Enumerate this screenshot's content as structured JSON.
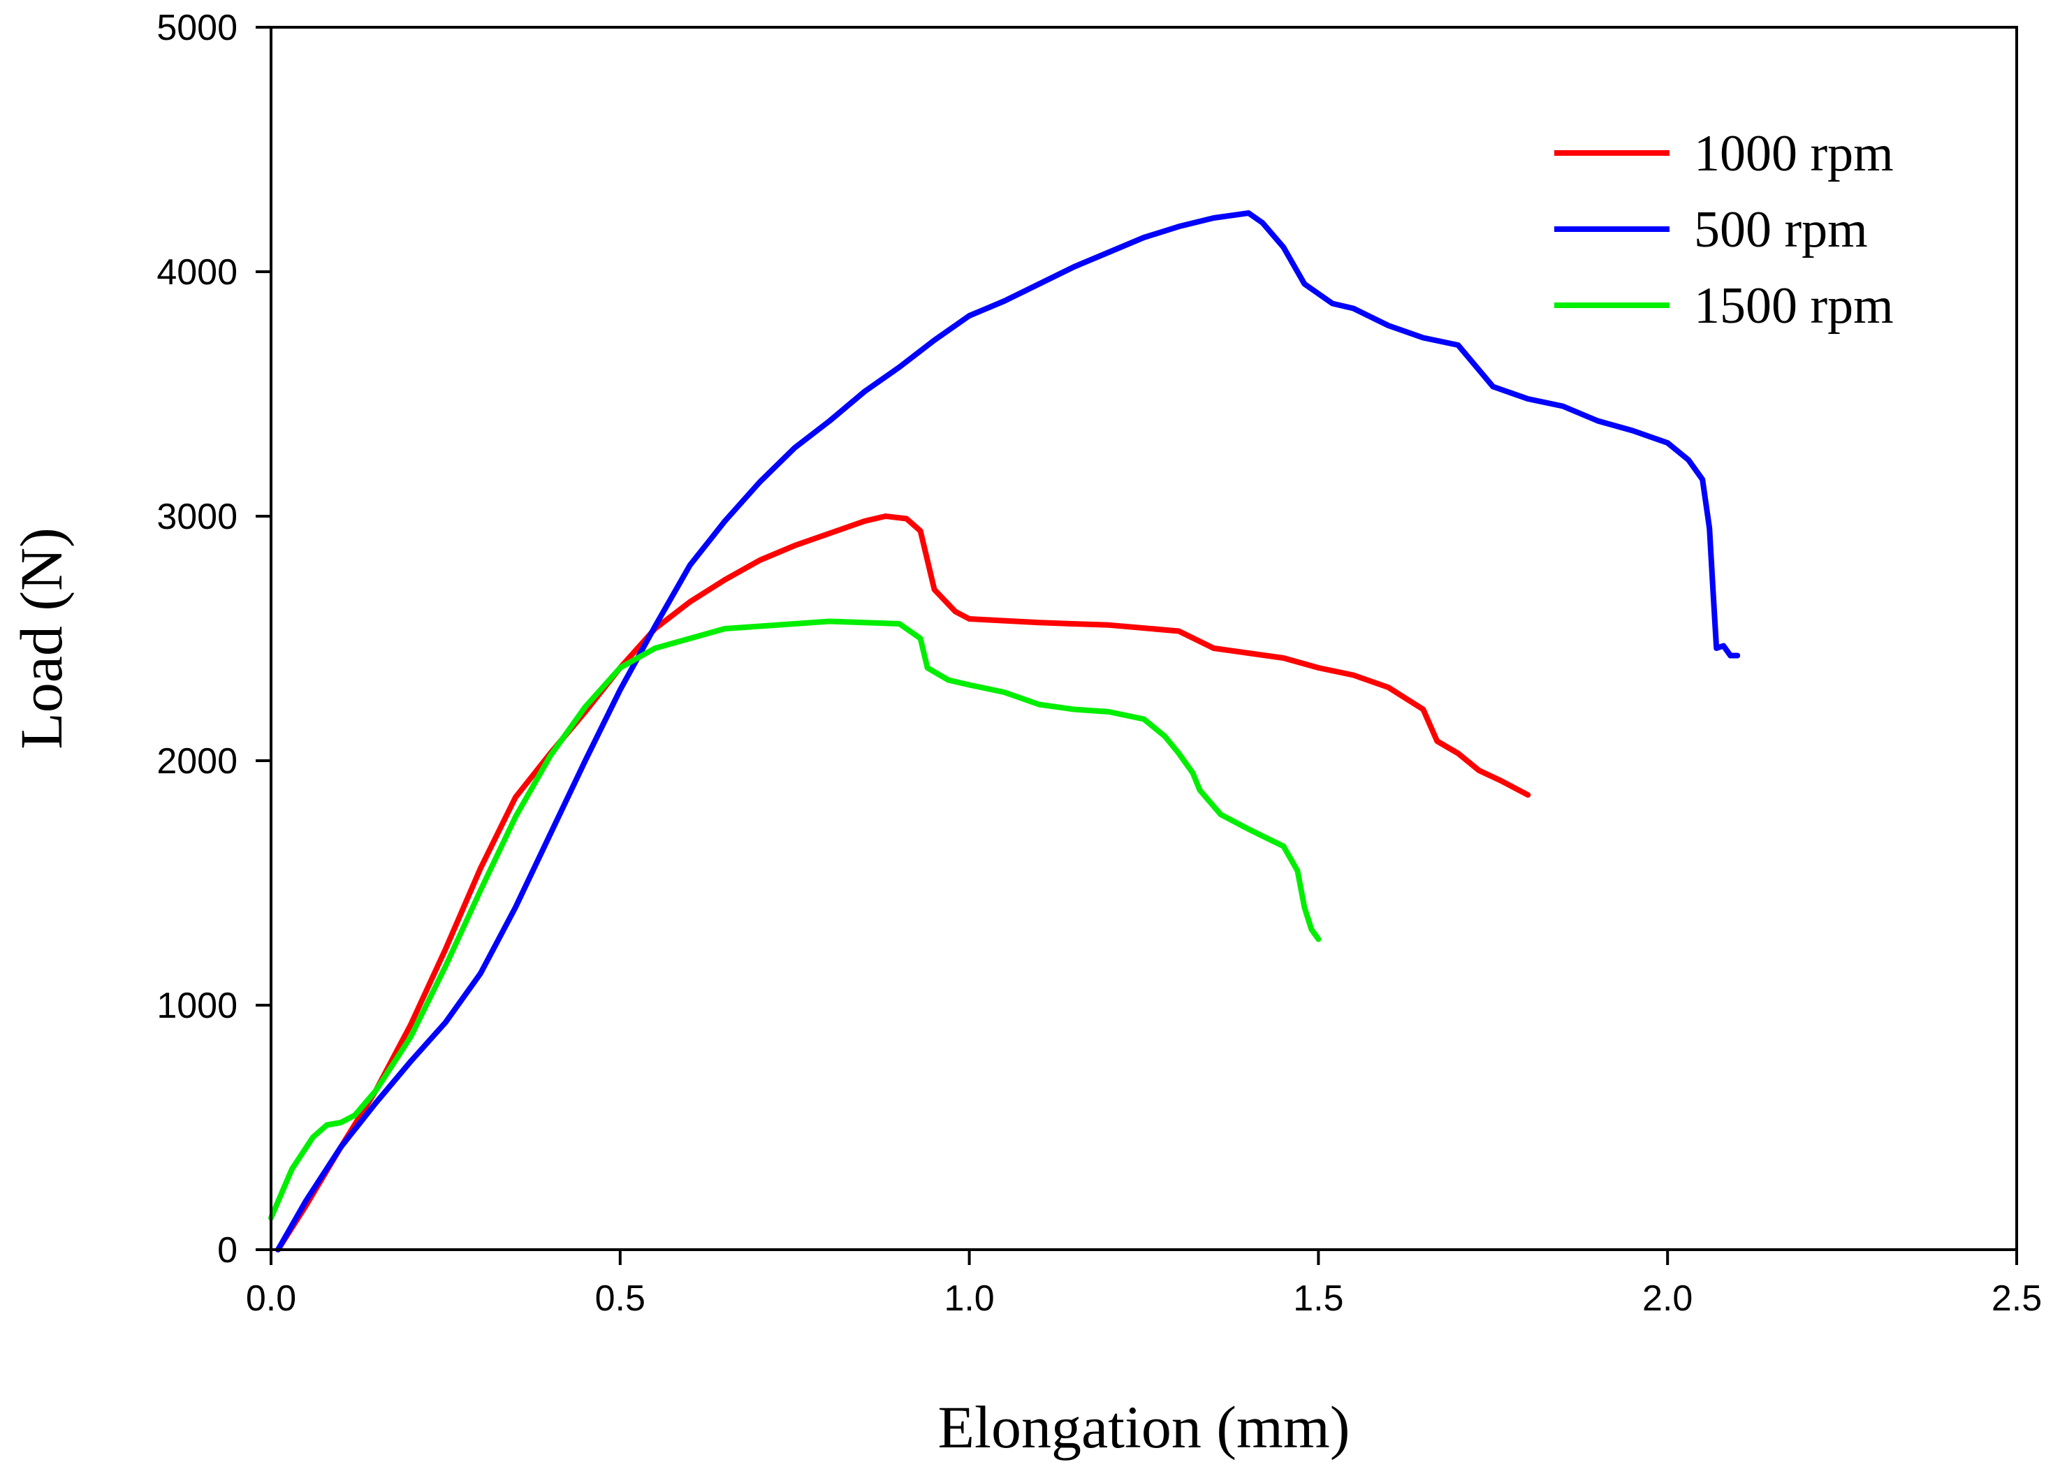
{
  "chart_data": {
    "type": "line",
    "title": "",
    "xlabel": "Elongation (mm)",
    "ylabel": "Load (N)",
    "xlim": [
      0.0,
      2.5
    ],
    "ylim": [
      0,
      5000
    ],
    "xticks": [
      0.0,
      0.5,
      1.0,
      1.5,
      2.0,
      2.5
    ],
    "xtick_labels": [
      "0.0",
      "0.5",
      "1.0",
      "1.5",
      "2.0",
      "2.5"
    ],
    "yticks": [
      0,
      1000,
      2000,
      3000,
      4000,
      5000
    ],
    "ytick_labels": [
      "0",
      "1000",
      "2000",
      "3000",
      "4000",
      "5000"
    ],
    "grid": false,
    "legend_position": "top-right",
    "series": [
      {
        "name": "1000 rpm",
        "color": "#ff0000",
        "points": [
          [
            0.01,
            0
          ],
          [
            0.05,
            180
          ],
          [
            0.1,
            420
          ],
          [
            0.15,
            650
          ],
          [
            0.2,
            920
          ],
          [
            0.25,
            1230
          ],
          [
            0.3,
            1560
          ],
          [
            0.35,
            1850
          ],
          [
            0.4,
            2030
          ],
          [
            0.45,
            2200
          ],
          [
            0.5,
            2380
          ],
          [
            0.55,
            2540
          ],
          [
            0.6,
            2650
          ],
          [
            0.65,
            2740
          ],
          [
            0.7,
            2820
          ],
          [
            0.75,
            2880
          ],
          [
            0.8,
            2930
          ],
          [
            0.85,
            2980
          ],
          [
            0.88,
            3000
          ],
          [
            0.91,
            2990
          ],
          [
            0.93,
            2940
          ],
          [
            0.95,
            2700
          ],
          [
            0.98,
            2610
          ],
          [
            1.0,
            2580
          ],
          [
            1.1,
            2565
          ],
          [
            1.2,
            2555
          ],
          [
            1.3,
            2530
          ],
          [
            1.35,
            2460
          ],
          [
            1.4,
            2440
          ],
          [
            1.45,
            2420
          ],
          [
            1.5,
            2380
          ],
          [
            1.55,
            2350
          ],
          [
            1.6,
            2300
          ],
          [
            1.65,
            2210
          ],
          [
            1.67,
            2080
          ],
          [
            1.7,
            2030
          ],
          [
            1.73,
            1960
          ],
          [
            1.76,
            1920
          ],
          [
            1.8,
            1860
          ]
        ]
      },
      {
        "name": "500 rpm",
        "color": "#0000ff",
        "points": [
          [
            0.01,
            0
          ],
          [
            0.05,
            200
          ],
          [
            0.1,
            420
          ],
          [
            0.15,
            600
          ],
          [
            0.2,
            770
          ],
          [
            0.25,
            930
          ],
          [
            0.3,
            1130
          ],
          [
            0.35,
            1400
          ],
          [
            0.4,
            1700
          ],
          [
            0.45,
            2000
          ],
          [
            0.5,
            2290
          ],
          [
            0.55,
            2550
          ],
          [
            0.6,
            2800
          ],
          [
            0.65,
            2980
          ],
          [
            0.7,
            3140
          ],
          [
            0.75,
            3280
          ],
          [
            0.8,
            3390
          ],
          [
            0.85,
            3510
          ],
          [
            0.9,
            3610
          ],
          [
            0.95,
            3720
          ],
          [
            1.0,
            3820
          ],
          [
            1.05,
            3880
          ],
          [
            1.1,
            3950
          ],
          [
            1.15,
            4020
          ],
          [
            1.2,
            4080
          ],
          [
            1.25,
            4140
          ],
          [
            1.3,
            4185
          ],
          [
            1.35,
            4220
          ],
          [
            1.4,
            4240
          ],
          [
            1.42,
            4200
          ],
          [
            1.45,
            4100
          ],
          [
            1.48,
            3950
          ],
          [
            1.52,
            3870
          ],
          [
            1.55,
            3850
          ],
          [
            1.6,
            3780
          ],
          [
            1.65,
            3730
          ],
          [
            1.7,
            3700
          ],
          [
            1.75,
            3530
          ],
          [
            1.8,
            3480
          ],
          [
            1.85,
            3450
          ],
          [
            1.9,
            3390
          ],
          [
            1.95,
            3350
          ],
          [
            2.0,
            3300
          ],
          [
            2.03,
            3230
          ],
          [
            2.05,
            3150
          ],
          [
            2.06,
            2950
          ],
          [
            2.065,
            2700
          ],
          [
            2.07,
            2460
          ],
          [
            2.08,
            2470
          ],
          [
            2.09,
            2430
          ],
          [
            2.1,
            2430
          ]
        ]
      },
      {
        "name": "1500 rpm",
        "color": "#00ee00",
        "points": [
          [
            0.0,
            130
          ],
          [
            0.03,
            330
          ],
          [
            0.06,
            460
          ],
          [
            0.08,
            510
          ],
          [
            0.1,
            520
          ],
          [
            0.12,
            550
          ],
          [
            0.15,
            650
          ],
          [
            0.2,
            870
          ],
          [
            0.25,
            1160
          ],
          [
            0.3,
            1470
          ],
          [
            0.35,
            1770
          ],
          [
            0.4,
            2020
          ],
          [
            0.45,
            2220
          ],
          [
            0.5,
            2380
          ],
          [
            0.55,
            2460
          ],
          [
            0.6,
            2500
          ],
          [
            0.65,
            2540
          ],
          [
            0.7,
            2550
          ],
          [
            0.75,
            2560
          ],
          [
            0.8,
            2570
          ],
          [
            0.85,
            2565
          ],
          [
            0.9,
            2560
          ],
          [
            0.93,
            2500
          ],
          [
            0.94,
            2380
          ],
          [
            0.97,
            2330
          ],
          [
            1.0,
            2310
          ],
          [
            1.05,
            2280
          ],
          [
            1.1,
            2230
          ],
          [
            1.15,
            2210
          ],
          [
            1.2,
            2200
          ],
          [
            1.25,
            2170
          ],
          [
            1.28,
            2100
          ],
          [
            1.3,
            2030
          ],
          [
            1.32,
            1950
          ],
          [
            1.33,
            1880
          ],
          [
            1.36,
            1780
          ],
          [
            1.4,
            1720
          ],
          [
            1.45,
            1650
          ],
          [
            1.47,
            1550
          ],
          [
            1.48,
            1400
          ],
          [
            1.49,
            1310
          ],
          [
            1.5,
            1270
          ]
        ]
      }
    ]
  }
}
